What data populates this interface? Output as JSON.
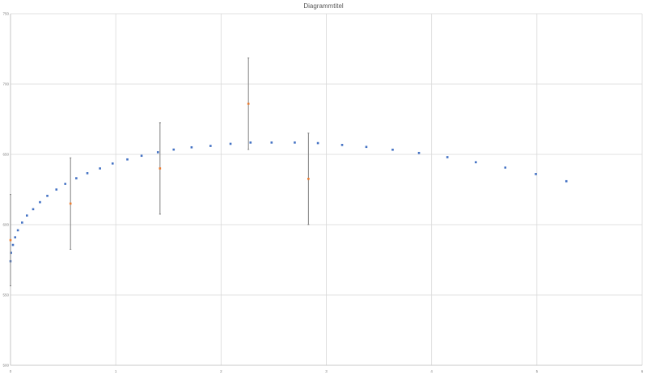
{
  "chart_data": {
    "type": "scatter",
    "title": "Diagrammtitel",
    "xlabel": "",
    "ylabel": "",
    "xlim": [
      0,
      6
    ],
    "ylim": [
      500,
      750
    ],
    "x_ticks": [
      "0",
      "1",
      "2",
      "3",
      "4",
      "5",
      "6"
    ],
    "y_ticks": [
      "500",
      "550",
      "600",
      "650",
      "700",
      "750"
    ],
    "grid": true,
    "legend": "none",
    "colors": {
      "series1": "#4472c4",
      "series2": "#ed7d31",
      "error_bar": "#7f7f7f",
      "grid": "#d9d9d9"
    },
    "series": [
      {
        "color": "#4472c4",
        "x": [
          0.0,
          0.005,
          0.023,
          0.044,
          0.07,
          0.11,
          0.156,
          0.215,
          0.28,
          0.35,
          0.436,
          0.52,
          0.625,
          0.73,
          0.85,
          0.97,
          1.11,
          1.245,
          1.4,
          1.55,
          1.72,
          1.9,
          2.09,
          2.28,
          2.48,
          2.7,
          2.92,
          3.15,
          3.38,
          3.63,
          3.88,
          4.15,
          4.42,
          4.7,
          4.99,
          5.28
        ],
        "y": [
          574,
          580,
          585.6,
          591,
          596,
          601.5,
          606.5,
          611,
          616,
          620.5,
          625,
          629,
          633,
          636.6,
          640,
          643.5,
          646.4,
          649,
          651.5,
          653.4,
          655,
          656,
          657.5,
          658.4,
          658.4,
          658.4,
          658,
          656.7,
          655.3,
          653.3,
          651,
          648,
          644.4,
          640.6,
          636,
          630.9
        ]
      },
      {
        "color": "#ed7d31",
        "x": [
          0.0,
          0.57,
          1.42,
          2.26,
          2.83
        ],
        "y": [
          589,
          615,
          640,
          686,
          632.6
        ],
        "error_y": [
          32.5,
          32.5,
          32.5,
          32.5,
          32.5
        ]
      }
    ]
  }
}
